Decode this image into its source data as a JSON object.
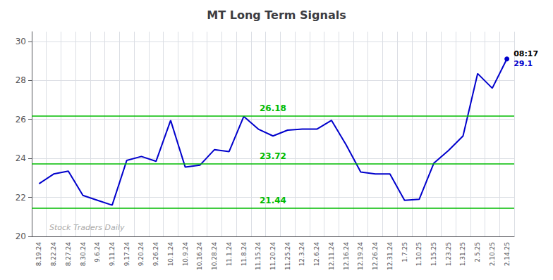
{
  "chart_data": {
    "type": "line",
    "title": "MT Long Term Signals",
    "categories": [
      "8.19.24",
      "8.22.24",
      "8.27.24",
      "8.30.24",
      "9.6.24",
      "9.11.24",
      "9.17.24",
      "9.20.24",
      "9.26.24",
      "10.1.24",
      "10.9.24",
      "10.16.24",
      "10.28.24",
      "11.1.24",
      "11.8.24",
      "11.15.24",
      "11.20.24",
      "11.25.24",
      "12.3.24",
      "12.6.24",
      "12.11.24",
      "12.16.24",
      "12.19.24",
      "12.26.24",
      "12.31.24",
      "1.7.25",
      "1.10.25",
      "1.15.25",
      "1.23.25",
      "1.31.25",
      "2.5.25",
      "2.10.25",
      "2.14.25"
    ],
    "values": [
      22.7,
      23.2,
      23.35,
      22.1,
      21.85,
      21.6,
      23.9,
      24.1,
      23.85,
      25.95,
      23.55,
      23.65,
      24.45,
      24.35,
      26.15,
      25.5,
      25.15,
      25.45,
      25.5,
      25.5,
      25.95,
      24.7,
      23.3,
      23.2,
      23.2,
      21.85,
      21.9,
      23.75,
      24.4,
      25.15,
      28.35,
      27.6,
      29.1
    ],
    "color": "#0000cc",
    "ylim": [
      20,
      30.5
    ],
    "yticks": [
      20,
      22,
      24,
      26,
      28,
      30
    ],
    "grid": true,
    "hlines": [
      {
        "value": 26.18,
        "label": "26.18",
        "color": "#00bb00"
      },
      {
        "value": 23.72,
        "label": "23.72",
        "color": "#00bb00"
      },
      {
        "value": 21.44,
        "label": "21.44",
        "color": "#00bb00"
      }
    ],
    "last_point_labels": [
      {
        "text": "08:17",
        "color": "#000000"
      },
      {
        "text": "29.1",
        "color": "#0000cc"
      }
    ],
    "watermark": {
      "text": "Stock Traders Daily",
      "color": "#aaaaaa"
    }
  }
}
